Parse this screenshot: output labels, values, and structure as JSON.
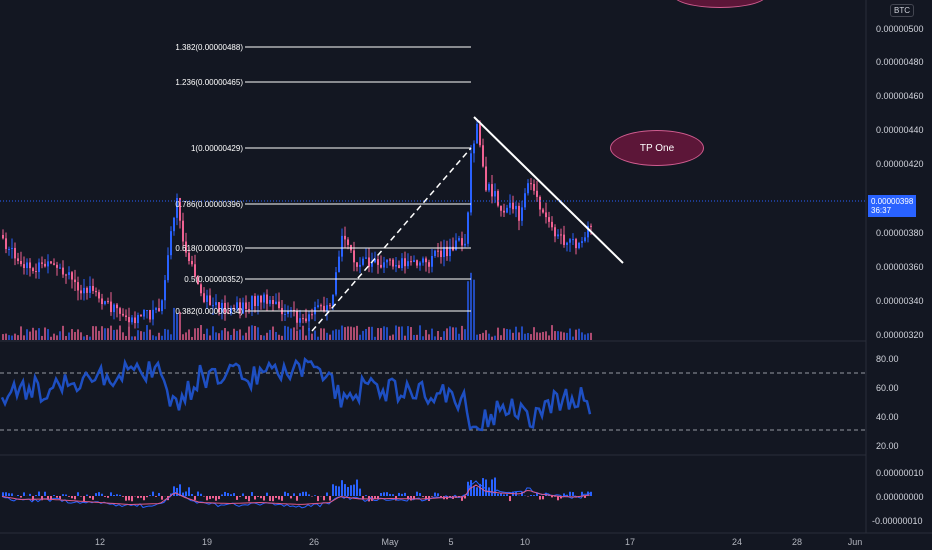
{
  "currency_badge": "BTC",
  "price_axis": [
    "0.00000500",
    "0.00000480",
    "0.00000460",
    "0.00000440",
    "0.00000420",
    "0.00000398",
    "0.00000380",
    "0.00000360",
    "0.00000340",
    "0.00000320"
  ],
  "current_price": {
    "value": "0.00000398",
    "countdown": "36:37"
  },
  "fib_levels": [
    {
      "label": "1.382(0.00000488)"
    },
    {
      "label": "1.236(0.00000465)"
    },
    {
      "label": "1(0.00000429)"
    },
    {
      "label": "0.786(0.00000396)"
    },
    {
      "label": "0.618(0.00000370)"
    },
    {
      "label": "0.5(0.00000352)"
    },
    {
      "label": "0.382(0.00000334)"
    }
  ],
  "tp_label": "TP One",
  "rsi_axis": [
    "80.00",
    "60.00",
    "40.00",
    "20.00"
  ],
  "macd_axis": [
    "0.00000010",
    "0.00000000",
    "-0.00000010"
  ],
  "time_axis": [
    "12",
    "19",
    "26",
    "May",
    "5",
    "10",
    "17",
    "24",
    "28",
    "Jun"
  ],
  "colors": {
    "background": "#131722",
    "up": "#2962ff",
    "down": "#f06292",
    "rsi": "#1e4fc2",
    "tp_fill": "#5c1638",
    "tp_border": "#d05c8f"
  }
}
